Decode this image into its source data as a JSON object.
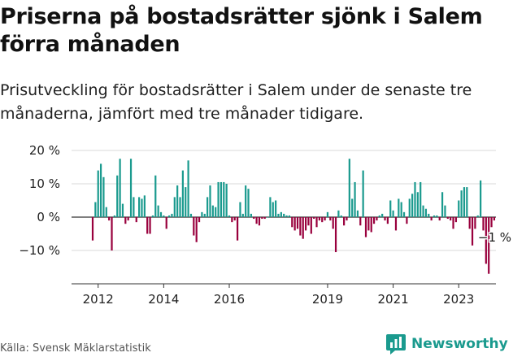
{
  "title": "Priserna på bostadsrätter sjönk i Salem förra månaden",
  "subtitle": "Prisutveckling för bostadsrätter i Salem under de senaste tre månaderna, jämfört med tre månader tidigare.",
  "source": "Källa: Svensk Mäklarstatistik",
  "brand": {
    "name": "Newsworthy",
    "logo_icon": "newsworthy-chart-bubble-icon"
  },
  "colors": {
    "positive": "#1a9a8e",
    "negative": "#99003d",
    "grid": "#d9d9d9",
    "axis": "#333333"
  },
  "chart_data": {
    "type": "bar",
    "x_start": "2011-11",
    "frequency": "monthly",
    "ylim": [
      -20,
      20
    ],
    "y_ticks": [
      20,
      10,
      0,
      -10
    ],
    "y_tick_labels": [
      "20 %",
      "10 %",
      "0 %",
      "−10 %"
    ],
    "x_ticks": [
      "2012",
      "2014",
      "2016",
      "2019",
      "2021",
      "2023"
    ],
    "annotation": {
      "text": "−1 %",
      "target": "last"
    },
    "values": [
      -7,
      4.5,
      14,
      16,
      12,
      3,
      -1,
      -10,
      0.5,
      12.5,
      17.5,
      4,
      -2,
      -1,
      17.5,
      6,
      -1.5,
      6,
      5.5,
      6.5,
      -5,
      -5,
      0.5,
      12.5,
      3.5,
      1.5,
      0.5,
      -3.5,
      0.5,
      1,
      6,
      9.5,
      6,
      14,
      9,
      17,
      1,
      -5.5,
      -7.5,
      -1.5,
      1.5,
      1,
      6,
      9.5,
      3.5,
      3,
      10.5,
      10.5,
      10.5,
      10,
      0.5,
      -1.5,
      -1,
      -7,
      4.5,
      1,
      9.5,
      8.5,
      1,
      -0.5,
      -2,
      -2.5,
      -0.5,
      -0.5,
      0,
      6,
      4.5,
      5,
      1,
      1.5,
      1,
      0.5,
      0.5,
      -3,
      -4,
      -3.5,
      -5.5,
      -6.5,
      -4,
      -2.5,
      -5,
      -0.5,
      -3,
      -1,
      -1.5,
      -1,
      1.5,
      -1,
      -3.5,
      -10.5,
      2,
      0.5,
      -2.5,
      -1,
      17.5,
      5.5,
      10.5,
      2,
      -2.5,
      14,
      -6,
      -4,
      -4.5,
      -2,
      -1,
      0.5,
      1,
      -1,
      -2,
      5,
      2,
      -4,
      5.5,
      4.5,
      1.5,
      -2,
      5.5,
      7,
      10.5,
      7.5,
      10.5,
      3.5,
      2.5,
      1,
      -1,
      0.5,
      0.5,
      -1,
      7.5,
      3.5,
      -0.5,
      -1,
      -3.5,
      -1.5,
      5,
      8,
      9,
      9,
      -3.5,
      -8.5,
      -3.5,
      0.5,
      11,
      -4,
      -14,
      -17,
      -3,
      -1
    ]
  }
}
